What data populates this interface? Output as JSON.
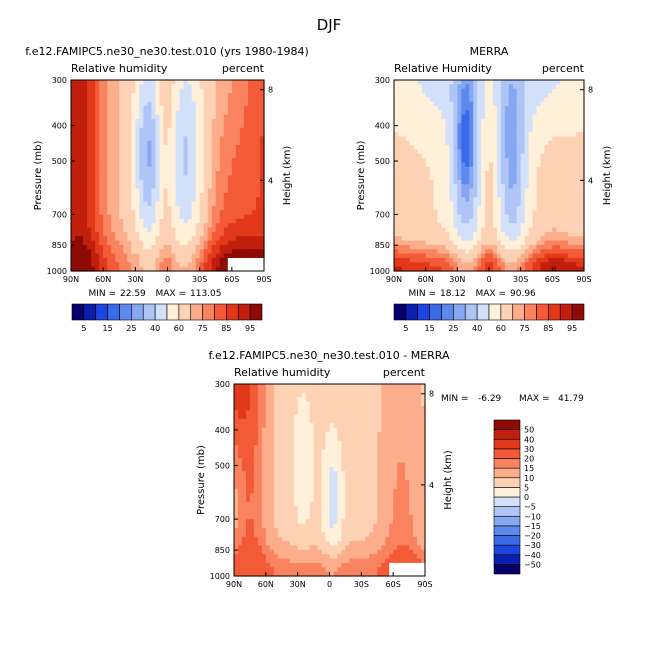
{
  "figure": {
    "title": "DJF",
    "y_tick_labels": [
      "300",
      "400",
      "500",
      "700",
      "850",
      "1000"
    ],
    "x_tick_labels": [
      "90N",
      "60N",
      "30N",
      "0",
      "30S",
      "60S",
      "90S"
    ],
    "height_tick_labels": [
      "8",
      "4"
    ]
  },
  "chart_data": [
    {
      "type": "heatmap",
      "title": "f.e12.FAMIPC5.ne30_ne30.test.010 (yrs 1980-1984)",
      "left_label": "Relative humidity",
      "right_label": "percent",
      "ylabel": "Pressure (mb)",
      "ylabel_right": "Height (km)",
      "min_label": "MIN =",
      "min_value": "22.59",
      "max_label": "MAX =",
      "max_value": "113.05",
      "latitude_range": [
        90,
        -90
      ],
      "pressure_range_mb": [
        300,
        1000
      ],
      "y_axis_scale": "log",
      "contour_levels": [
        5,
        10,
        15,
        20,
        25,
        30,
        40,
        50,
        60,
        70,
        75,
        80,
        85,
        90,
        95
      ],
      "colorbar_labels": [
        "5",
        "15",
        "25",
        "40",
        "60",
        "75",
        "85",
        "95"
      ],
      "colors": [
        "#08006a",
        "#0a1fb0",
        "#1d44dc",
        "#3a6ae8",
        "#5d88ee",
        "#86a7f2",
        "#aec5f6",
        "#d2e0fa",
        "#fff1d9",
        "#fdd2b4",
        "#fcae8c",
        "#f9835f",
        "#f35a37",
        "#e2381b",
        "#c21e0d",
        "#8e0a05"
      ]
    },
    {
      "type": "heatmap",
      "title": "MERRA",
      "left_label": "Relative Humidity",
      "right_label": "percent",
      "ylabel": "Pressure (mb)",
      "ylabel_right": "Height (km)",
      "min_label": "MIN =",
      "min_value": "18.12",
      "max_label": "MAX =",
      "max_value": "90.96",
      "latitude_range": [
        90,
        -90
      ],
      "pressure_range_mb": [
        300,
        1000
      ],
      "y_axis_scale": "log",
      "contour_levels": [
        5,
        10,
        15,
        20,
        25,
        30,
        40,
        50,
        60,
        70,
        75,
        80,
        85,
        90,
        95
      ],
      "colorbar_labels": [
        "5",
        "15",
        "25",
        "40",
        "60",
        "75",
        "85",
        "95"
      ],
      "colors": [
        "#08006a",
        "#0a1fb0",
        "#1d44dc",
        "#3a6ae8",
        "#5d88ee",
        "#86a7f2",
        "#aec5f6",
        "#d2e0fa",
        "#fff1d9",
        "#fdd2b4",
        "#fcae8c",
        "#f9835f",
        "#f35a37",
        "#e2381b",
        "#c21e0d",
        "#8e0a05"
      ]
    },
    {
      "type": "heatmap",
      "title": "f.e12.FAMIPC5.ne30_ne30.test.010 - MERRA",
      "left_label": "Relative humidity",
      "right_label": "percent",
      "ylabel": "Pressure (mb)",
      "ylabel_right": "Height (km)",
      "min_label": "MIN =",
      "min_value": "-6.29",
      "max_label": "MAX =",
      "max_value": "41.79",
      "latitude_range": [
        90,
        -90
      ],
      "pressure_range_mb": [
        300,
        1000
      ],
      "y_axis_scale": "log",
      "contour_levels": [
        -50,
        -40,
        -30,
        -20,
        -15,
        -10,
        -5,
        0,
        5,
        10,
        15,
        20,
        30,
        40,
        50
      ],
      "colorbar_labels": [
        "50",
        "40",
        "30",
        "20",
        "15",
        "10",
        "5",
        "0",
        "−5",
        "−10",
        "−15",
        "−20",
        "−30",
        "−40",
        "−50"
      ],
      "colors": [
        "#08006a",
        "#0a1fb0",
        "#1d44dc",
        "#3a6ae8",
        "#5d88ee",
        "#86a7f2",
        "#aec5f6",
        "#d2e0fa",
        "#fff1d9",
        "#fdd2b4",
        "#fcae8c",
        "#f9835f",
        "#f35a37",
        "#e2381b",
        "#c21e0d",
        "#8e0a05"
      ]
    }
  ]
}
